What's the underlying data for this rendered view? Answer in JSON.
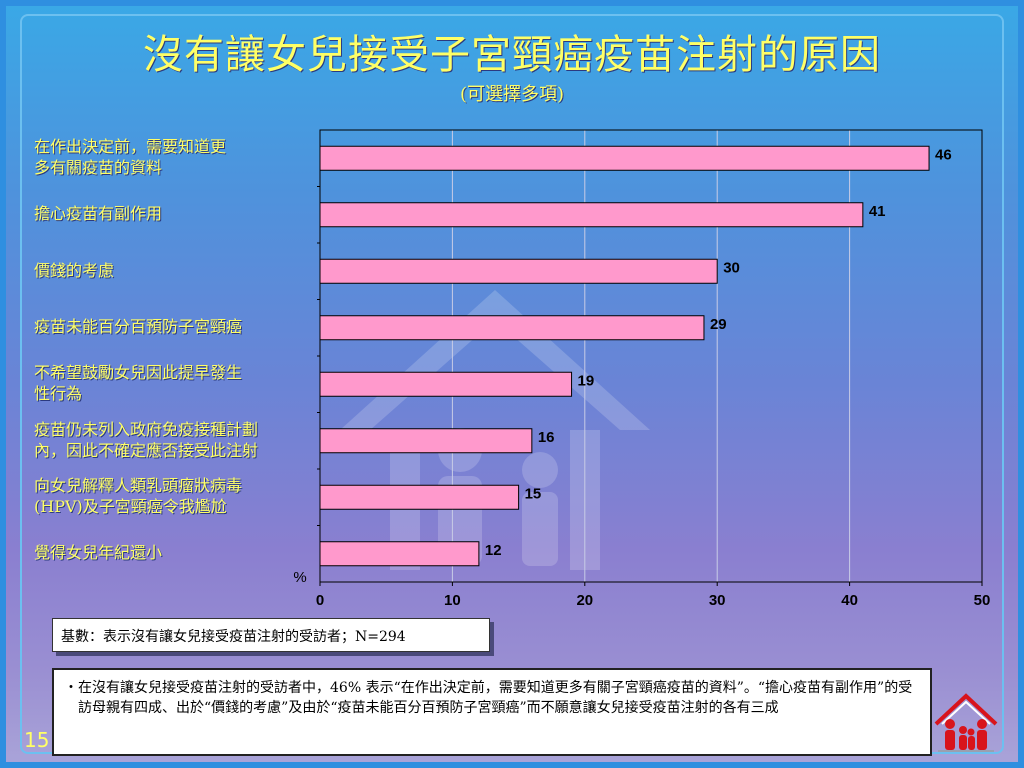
{
  "slide": {
    "title": "沒有讓女兒接受子宮頸癌疫苗注射的原因",
    "subtitle": "(可選擇多項)",
    "page_number": "15",
    "base_note": "基數：表示沒有讓女兒接受疫苗注射的受訪者；N=294",
    "note_bullet": "・",
    "note_text": "在沒有讓女兒接受疫苗注射的受訪者中，46% 表示“在作出決定前，需要知道更多有關子宮頸癌疫苗的資料”。“擔心疫苗有副作用”的受訪母親有四成、出於“價錢的考慮”及由於“疫苗未能百分百預防子宮頸癌”而不願意讓女兒接受疫苗注射的各有三成",
    "icons": [
      "house-watermark-icon",
      "family-logo-icon"
    ],
    "colors": {
      "bar_fill": "#ff99cc",
      "title_text": "#ffff66"
    }
  },
  "chart_data": {
    "type": "bar",
    "orientation": "horizontal",
    "categories": [
      "在作出決定前，需要知道更\n多有關疫苗的資料",
      "擔心疫苗有副作用",
      "價錢的考慮",
      "疫苗未能百分百預防子宮頸癌",
      "不希望鼓勵女兒因此提早發生\n性行為",
      "疫苗仍未列入政府免疫接種計劃\n內，因此不確定應否接受此注射",
      "向女兒解釋人類乳頭瘤狀病毒\n(HPV)及子宮頸癌令我尷尬",
      "覺得女兒年紀還小"
    ],
    "values": [
      46,
      41,
      30,
      29,
      19,
      16,
      15,
      12
    ],
    "ylabel": "%",
    "xlim": [
      0,
      50
    ],
    "ticks": [
      0,
      10,
      20,
      30,
      40,
      50
    ],
    "grid": true,
    "legend": "none"
  }
}
